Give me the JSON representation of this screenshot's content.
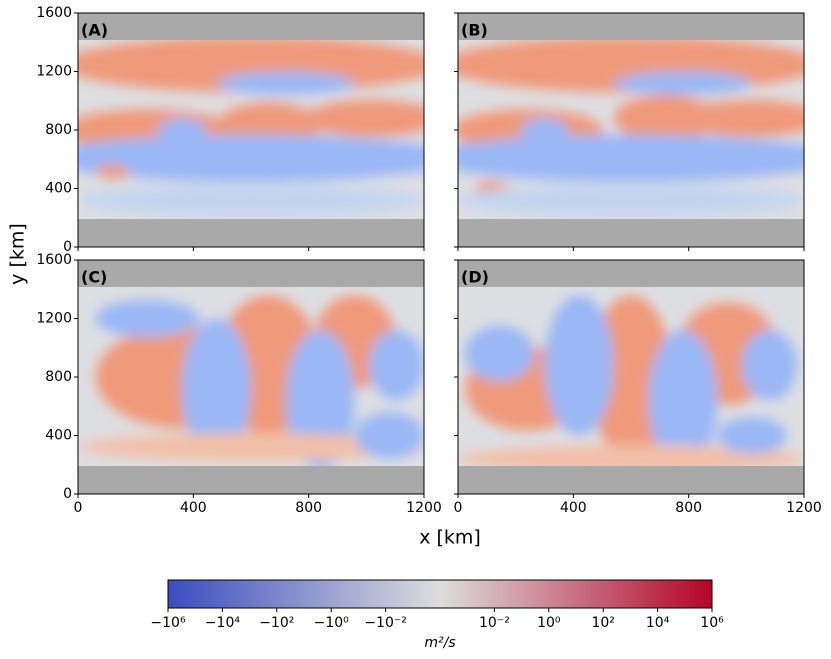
{
  "figure": {
    "xlabel": "x [km]",
    "ylabel": "y [km]"
  },
  "chart_data": [
    {
      "type": "heatmap",
      "panel_label": "(A)",
      "xlim": [
        0,
        1200
      ],
      "ylim": [
        0,
        1600
      ],
      "xticks": [
        0,
        400,
        800,
        1200
      ],
      "yticks": [
        0,
        400,
        800,
        1200,
        1600
      ],
      "show_xtick_labels": false,
      "show_ytick_labels": true
    },
    {
      "type": "heatmap",
      "panel_label": "(B)",
      "xlim": [
        0,
        1200
      ],
      "ylim": [
        0,
        1600
      ],
      "xticks": [
        0,
        400,
        800,
        1200
      ],
      "yticks": [
        0,
        400,
        800,
        1200,
        1600
      ],
      "show_xtick_labels": false,
      "show_ytick_labels": false
    },
    {
      "type": "heatmap",
      "panel_label": "(C)",
      "xlim": [
        0,
        1200
      ],
      "ylim": [
        0,
        1600
      ],
      "xticks": [
        0,
        400,
        800,
        1200
      ],
      "yticks": [
        0,
        400,
        800,
        1200,
        1600
      ],
      "show_xtick_labels": true,
      "show_ytick_labels": true
    },
    {
      "type": "heatmap",
      "panel_label": "(D)",
      "xlim": [
        0,
        1200
      ],
      "ylim": [
        0,
        1600
      ],
      "xticks": [
        0,
        400,
        800,
        1200
      ],
      "yticks": [
        0,
        400,
        800,
        1200,
        1600
      ],
      "show_xtick_labels": true,
      "show_ytick_labels": false
    },
    {
      "type": "colorbar",
      "label": "m²/s",
      "scale": "symlog",
      "linthresh": 0.0001,
      "clim": [
        -1000000,
        1000000
      ],
      "colors": [
        "#3b4cc0",
        "#dddddd",
        "#b40426"
      ],
      "ticks": [
        {
          "value": -1000000,
          "label": "−10⁶"
        },
        {
          "value": -10000,
          "label": "−10⁴"
        },
        {
          "value": -100,
          "label": "−10²"
        },
        {
          "value": -1,
          "label": "−10⁰"
        },
        {
          "value": -0.01,
          "label": "−10⁻²"
        },
        {
          "value": 0.01,
          "label": "10⁻²"
        },
        {
          "value": 1,
          "label": "10⁰"
        },
        {
          "value": 100,
          "label": "10²"
        },
        {
          "value": 10000,
          "label": "10⁴"
        },
        {
          "value": 1000000,
          "label": "10⁶"
        }
      ]
    }
  ]
}
